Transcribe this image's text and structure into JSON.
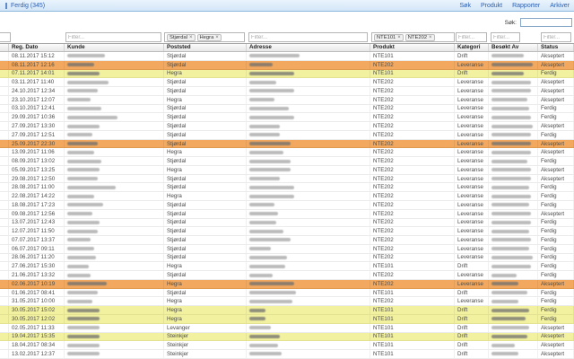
{
  "topbar": {
    "active_view": "Ferdig (345)",
    "menu": [
      "Søk",
      "Produkt",
      "Rapporter",
      "Arkiver"
    ]
  },
  "search": {
    "label": "Søk:",
    "value": ""
  },
  "filters": {
    "placeholder": "Filter...",
    "poststed_chips": [
      "Stjørdal",
      "Hegra"
    ],
    "produkt_chips": [
      "NTE101",
      "NTE202"
    ],
    "chip_remove": "×"
  },
  "table": {
    "columns": [
      "",
      "Reg. Dato",
      "Kunde",
      "Poststed",
      "Adresse",
      "Produkt",
      "Kategori",
      "Besøkt Av",
      "Status"
    ],
    "redacted_columns": [
      "Kunde",
      "Adresse",
      "Besøkt Av"
    ],
    "rows": [
      {
        "dato": "08.11.2017 15:12",
        "poststed": "Stjørdal",
        "produkt": "NTE101",
        "kategori": "Drift",
        "status": "Akseptert",
        "hl": "",
        "kw": 42,
        "aw": 56,
        "bw": 36
      },
      {
        "dato": "08.11.2017 12:16",
        "poststed": "Stjørdal",
        "produkt": "NTE202",
        "kategori": "Leveranse",
        "status": "Akseptert",
        "hl": "orange",
        "kw": 30,
        "aw": 26,
        "bw": 46
      },
      {
        "dato": "07.11.2017 14:01",
        "poststed": "Hegra",
        "produkt": "NTE101",
        "kategori": "Drift",
        "status": "Ferdig",
        "hl": "yellow",
        "kw": 36,
        "aw": 50,
        "bw": 36
      },
      {
        "dato": "03.11.2017 11:40",
        "poststed": "Stjørdal",
        "produkt": "NTE202",
        "kategori": "Leveranse",
        "status": "Akseptert",
        "hl": "",
        "kw": 46,
        "aw": 30,
        "bw": 44
      },
      {
        "dato": "24.10.2017 12:34",
        "poststed": "Stjørdal",
        "produkt": "NTE202",
        "kategori": "Leveranse",
        "status": "Akseptert",
        "hl": "",
        "kw": 34,
        "aw": 50,
        "bw": 44
      },
      {
        "dato": "23.10.2017 12:07",
        "poststed": "Hegra",
        "produkt": "NTE202",
        "kategori": "Leveranse",
        "status": "Akseptert",
        "hl": "",
        "kw": 26,
        "aw": 28,
        "bw": 40
      },
      {
        "dato": "03.10.2017 12:41",
        "poststed": "Stjørdal",
        "produkt": "NTE202",
        "kategori": "Leveranse",
        "status": "Ferdig",
        "hl": "",
        "kw": 38,
        "aw": 44,
        "bw": 42
      },
      {
        "dato": "29.09.2017 10:36",
        "poststed": "Stjørdal",
        "produkt": "NTE202",
        "kategori": "Leveranse",
        "status": "Ferdig",
        "hl": "",
        "kw": 56,
        "aw": 50,
        "bw": 44
      },
      {
        "dato": "27.09.2017 13:30",
        "poststed": "Stjørdal",
        "produkt": "NTE202",
        "kategori": "Leveranse",
        "status": "Akseptert",
        "hl": "",
        "kw": 36,
        "aw": 34,
        "bw": 46
      },
      {
        "dato": "27.09.2017 12:51",
        "poststed": "Stjørdal",
        "produkt": "NTE202",
        "kategori": "Leveranse",
        "status": "Ferdig",
        "hl": "",
        "kw": 28,
        "aw": 34,
        "bw": 44
      },
      {
        "dato": "25.09.2017 22:30",
        "poststed": "Stjørdal",
        "produkt": "NTE202",
        "kategori": "Leveranse",
        "status": "Akseptert",
        "hl": "orange",
        "kw": 34,
        "aw": 46,
        "bw": 44
      },
      {
        "dato": "13.09.2017 11:06",
        "poststed": "Hegra",
        "produkt": "NTE202",
        "kategori": "Leveranse",
        "status": "Akseptert",
        "hl": "",
        "kw": 30,
        "aw": 38,
        "bw": 44
      },
      {
        "dato": "08.09.2017 13:02",
        "poststed": "Stjørdal",
        "produkt": "NTE202",
        "kategori": "Leveranse",
        "status": "Ferdig",
        "hl": "",
        "kw": 38,
        "aw": 46,
        "bw": 40
      },
      {
        "dato": "05.09.2017 13:25",
        "poststed": "Hegra",
        "produkt": "NTE202",
        "kategori": "Leveranse",
        "status": "Akseptert",
        "hl": "",
        "kw": 36,
        "aw": 46,
        "bw": 44
      },
      {
        "dato": "29.08.2017 12:50",
        "poststed": "Stjørdal",
        "produkt": "NTE202",
        "kategori": "Leveranse",
        "status": "Akseptert",
        "hl": "",
        "kw": 34,
        "aw": 34,
        "bw": 44
      },
      {
        "dato": "28.08.2017 11:00",
        "poststed": "Stjørdal",
        "produkt": "NTE202",
        "kategori": "Leveranse",
        "status": "Ferdig",
        "hl": "",
        "kw": 54,
        "aw": 50,
        "bw": 42
      },
      {
        "dato": "22.08.2017 14:22",
        "poststed": "Hegra",
        "produkt": "NTE202",
        "kategori": "Leveranse",
        "status": "Ferdig",
        "hl": "",
        "kw": 30,
        "aw": 50,
        "bw": 44
      },
      {
        "dato": "18.08.2017 17:23",
        "poststed": "Stjørdal",
        "produkt": "NTE202",
        "kategori": "Leveranse",
        "status": "Ferdig",
        "hl": "",
        "kw": 40,
        "aw": 28,
        "bw": 42
      },
      {
        "dato": "09.08.2017 12:56",
        "poststed": "Stjørdal",
        "produkt": "NTE202",
        "kategori": "Leveranse",
        "status": "Akseptert",
        "hl": "",
        "kw": 28,
        "aw": 32,
        "bw": 44
      },
      {
        "dato": "13.07.2017 12:43",
        "poststed": "Stjørdal",
        "produkt": "NTE202",
        "kategori": "Leveranse",
        "status": "Ferdig",
        "hl": "",
        "kw": 36,
        "aw": 30,
        "bw": 44
      },
      {
        "dato": "12.07.2017 11:50",
        "poststed": "Stjørdal",
        "produkt": "NTE202",
        "kategori": "Leveranse",
        "status": "Ferdig",
        "hl": "",
        "kw": 34,
        "aw": 38,
        "bw": 42
      },
      {
        "dato": "07.07.2017 13:37",
        "poststed": "Stjørdal",
        "produkt": "NTE202",
        "kategori": "Leveranse",
        "status": "Ferdig",
        "hl": "",
        "kw": 26,
        "aw": 46,
        "bw": 44
      },
      {
        "dato": "06.07.2017 09:11",
        "poststed": "Stjørdal",
        "produkt": "NTE202",
        "kategori": "Leveranse",
        "status": "Ferdig",
        "hl": "",
        "kw": 30,
        "aw": 24,
        "bw": 42
      },
      {
        "dato": "28.06.2017 11:20",
        "poststed": "Stjørdal",
        "produkt": "NTE202",
        "kategori": "Leveranse",
        "status": "Ferdig",
        "hl": "",
        "kw": 32,
        "aw": 42,
        "bw": 46
      },
      {
        "dato": "27.06.2017 15:30",
        "poststed": "Hegra",
        "produkt": "NTE101",
        "kategori": "Drift",
        "status": "Ferdig",
        "hl": "",
        "kw": 24,
        "aw": 40,
        "bw": 44
      },
      {
        "dato": "21.06.2017 13:32",
        "poststed": "Stjørdal",
        "produkt": "NTE202",
        "kategori": "Leveranse",
        "status": "Ferdig",
        "hl": "",
        "kw": 26,
        "aw": 26,
        "bw": 28
      },
      {
        "dato": "02.06.2017 10:19",
        "poststed": "Hegra",
        "produkt": "NTE202",
        "kategori": "Leveranse",
        "status": "Akseptert",
        "hl": "orange",
        "kw": 44,
        "aw": 50,
        "bw": 30
      },
      {
        "dato": "01.06.2017 08:41",
        "poststed": "Stjørdal",
        "produkt": "NTE101",
        "kategori": "Drift",
        "status": "Ferdig",
        "hl": "",
        "kw": 34,
        "aw": 52,
        "bw": 40
      },
      {
        "dato": "31.05.2017 10:00",
        "poststed": "Hegra",
        "produkt": "NTE202",
        "kategori": "Leveranse",
        "status": "Ferdig",
        "hl": "",
        "kw": 28,
        "aw": 48,
        "bw": 30
      },
      {
        "dato": "30.05.2017 15:02",
        "poststed": "Hegra",
        "produkt": "NTE101",
        "kategori": "Drift",
        "status": "Ferdig",
        "hl": "yellow",
        "kw": 36,
        "aw": 18,
        "bw": 42
      },
      {
        "dato": "30.05.2017 12:02",
        "poststed": "Hegra",
        "produkt": "NTE101",
        "kategori": "Drift",
        "status": "Ferdig",
        "hl": "yellow",
        "kw": 36,
        "aw": 18,
        "bw": 38
      },
      {
        "dato": "02.05.2017 11:33",
        "poststed": "Levanger",
        "produkt": "NTE101",
        "kategori": "Drift",
        "status": "Akseptert",
        "hl": "",
        "kw": 36,
        "aw": 24,
        "bw": 42
      },
      {
        "dato": "19.04.2017 15:35",
        "poststed": "Steinkjer",
        "produkt": "NTE101",
        "kategori": "Drift",
        "status": "Akseptert",
        "hl": "yellow",
        "kw": 36,
        "aw": 34,
        "bw": 40
      },
      {
        "dato": "18.04.2017 08:34",
        "poststed": "Steinkjer",
        "produkt": "NTE101",
        "kategori": "Drift",
        "status": "Akseptert",
        "hl": "",
        "kw": 36,
        "aw": 32,
        "bw": 26
      },
      {
        "dato": "13.02.2017 12:37",
        "poststed": "Steinkjer",
        "produkt": "NTE101",
        "kategori": "Drift",
        "status": "Akseptert",
        "hl": "",
        "kw": 36,
        "aw": 36,
        "bw": 30
      }
    ]
  },
  "colors": {
    "topbar_bg": "#d3e6f8",
    "link_blue": "#2b5fb3",
    "highlight_orange": "#f2a95f",
    "highlight_yellow": "#f2f1a0",
    "header_bg": "#e7e7e7"
  }
}
